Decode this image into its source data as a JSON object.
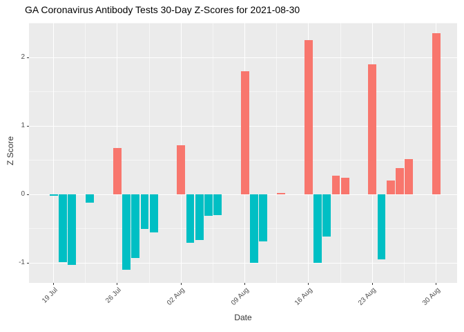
{
  "chart_data": {
    "type": "bar",
    "title": "GA Coronavirus Antibody Tests 30-Day Z-Scores for 2021-08-30",
    "xlabel": "Date",
    "ylabel": "Z Score",
    "legend": "none",
    "grid": "on",
    "x_tick_labels": [
      "19 Jul",
      "26 Jul",
      "02 Aug",
      "09 Aug",
      "16 Aug",
      "23 Aug",
      "30 Aug"
    ],
    "x_tick_dates": [
      "2021-07-19",
      "2021-07-26",
      "2021-08-02",
      "2021-08-09",
      "2021-08-16",
      "2021-08-23",
      "2021-08-30"
    ],
    "y_ticks": [
      -1,
      0,
      1,
      2
    ],
    "y_minor_ticks": [
      -0.5,
      0.5,
      1.5,
      2.5
    ],
    "xlim_days": [
      -2.7,
      44.3
    ],
    "ylim": [
      -1.29,
      2.51
    ],
    "bar_width_days": 0.9,
    "colors": {
      "positive": "#F8766D",
      "negative": "#00BFC4",
      "panel_bg": "#EBEBEB",
      "gridline": "#FFFFFF",
      "tick_text": "#4D4D4D",
      "title_text": "#000000"
    },
    "bars": [
      {
        "date": "2021-07-19",
        "value": -0.02
      },
      {
        "date": "2021-07-20",
        "value": -0.99
      },
      {
        "date": "2021-07-21",
        "value": -1.03
      },
      {
        "date": "2021-07-23",
        "value": -0.12
      },
      {
        "date": "2021-07-26",
        "value": 0.68
      },
      {
        "date": "2021-07-27",
        "value": -1.1
      },
      {
        "date": "2021-07-28",
        "value": -0.93
      },
      {
        "date": "2021-07-29",
        "value": -0.5
      },
      {
        "date": "2021-07-30",
        "value": -0.55
      },
      {
        "date": "2021-08-02",
        "value": 0.72
      },
      {
        "date": "2021-08-03",
        "value": -0.7
      },
      {
        "date": "2021-08-04",
        "value": -0.66
      },
      {
        "date": "2021-08-05",
        "value": -0.31
      },
      {
        "date": "2021-08-06",
        "value": -0.3
      },
      {
        "date": "2021-08-09",
        "value": 1.8
      },
      {
        "date": "2021-08-10",
        "value": -1.0
      },
      {
        "date": "2021-08-11",
        "value": -0.68
      },
      {
        "date": "2021-08-13",
        "value": 0.02
      },
      {
        "date": "2021-08-16",
        "value": 2.26
      },
      {
        "date": "2021-08-17",
        "value": -1.0
      },
      {
        "date": "2021-08-18",
        "value": -0.61
      },
      {
        "date": "2021-08-19",
        "value": 0.28
      },
      {
        "date": "2021-08-20",
        "value": 0.25
      },
      {
        "date": "2021-08-23",
        "value": 1.9
      },
      {
        "date": "2021-08-24",
        "value": -0.95
      },
      {
        "date": "2021-08-25",
        "value": 0.21
      },
      {
        "date": "2021-08-26",
        "value": 0.39
      },
      {
        "date": "2021-08-27",
        "value": 0.52
      },
      {
        "date": "2021-08-30",
        "value": 2.36
      }
    ]
  }
}
